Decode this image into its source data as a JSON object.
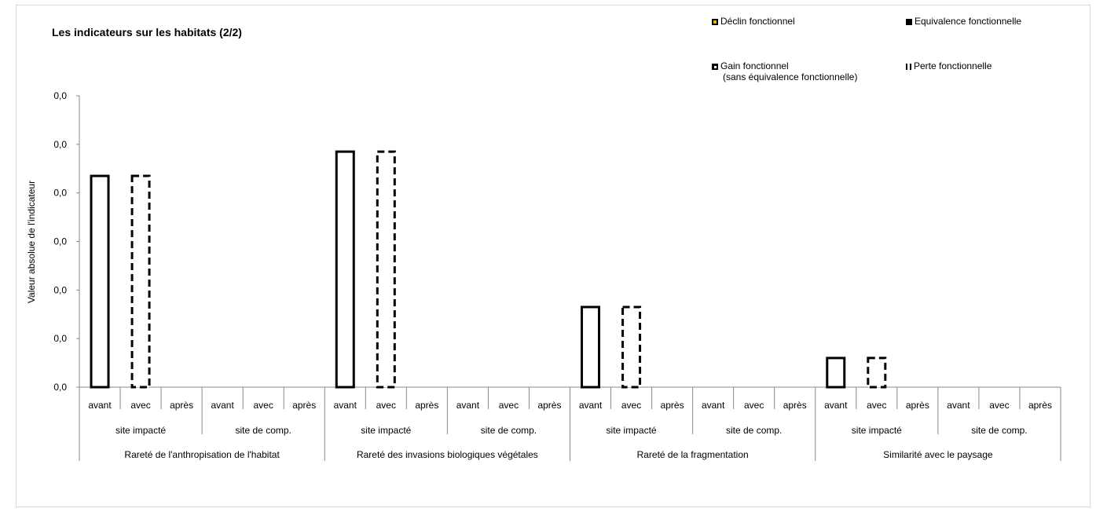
{
  "chart_data": {
    "type": "bar",
    "title": "Les indicateurs sur les habitats (2/2)",
    "ylabel": "Valeur absolue de l'indicateur",
    "yticks": [
      "0,0",
      "0,0",
      "0,0",
      "0,0",
      "0,0",
      "0,0",
      "0,0"
    ],
    "ylim": [
      0,
      6
    ],
    "grid": false,
    "legend_position": "top-right",
    "legend": [
      {
        "label": "Déclin fonctionnel",
        "swatch_color": "#f0b400",
        "style": "solid-filled"
      },
      {
        "label": "Equivalence fonctionnelle",
        "swatch_color": "#000000",
        "style": "solid-filled"
      },
      {
        "label": "Gain fonctionnel",
        "label2": "(sans équivalence fonctionnelle)",
        "swatch_color": "#000000",
        "style": "hatched"
      },
      {
        "label": "Perte fonctionnelle",
        "swatch_color": "#000000",
        "style": "dashed-outline"
      }
    ],
    "level1": [
      "avant",
      "avec",
      "après"
    ],
    "level2": [
      "site impacté",
      "site de comp."
    ],
    "groups": [
      {
        "name": "Rareté de l'anthropisation de l'habitat",
        "values": [
          [
            4.35,
            4.35,
            0
          ],
          [
            0,
            0,
            0
          ]
        ],
        "styles": [
          [
            "solid",
            "dashed",
            "none"
          ],
          [
            "none",
            "none",
            "none"
          ]
        ]
      },
      {
        "name": "Rareté des invasions biologiques végétales",
        "values": [
          [
            4.85,
            4.85,
            0
          ],
          [
            0,
            0,
            0
          ]
        ],
        "styles": [
          [
            "solid",
            "dashed",
            "none"
          ],
          [
            "none",
            "none",
            "none"
          ]
        ]
      },
      {
        "name": "Rareté de la fragmentation",
        "values": [
          [
            1.65,
            1.65,
            0
          ],
          [
            0,
            0,
            0
          ]
        ],
        "styles": [
          [
            "solid",
            "dashed",
            "none"
          ],
          [
            "none",
            "none",
            "none"
          ]
        ]
      },
      {
        "name": "Similarité avec le paysage",
        "values": [
          [
            0.6,
            0.6,
            0
          ],
          [
            0,
            0,
            0
          ]
        ],
        "styles": [
          [
            "solid",
            "dashed",
            "none"
          ],
          [
            "none",
            "none",
            "none"
          ]
        ]
      }
    ]
  }
}
